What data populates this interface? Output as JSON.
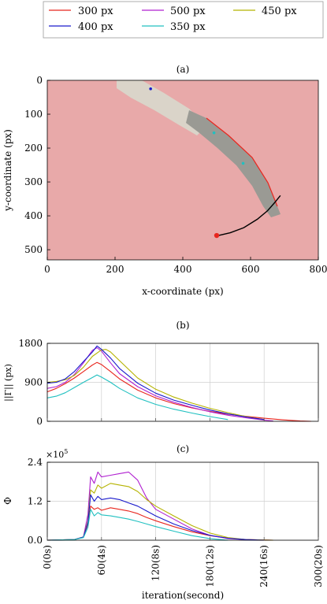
{
  "legend": {
    "entries": [
      {
        "label": "300 px",
        "color": "#e8261e"
      },
      {
        "label": "500 px",
        "color": "#b020d0"
      },
      {
        "label": "450 px",
        "color": "#b5b300"
      },
      {
        "label": "400 px",
        "color": "#1a1acc"
      },
      {
        "label": "350 px",
        "color": "#20c0c0"
      }
    ]
  },
  "chart_data": [
    {
      "panel_label": "(a)",
      "type": "scatter",
      "xlabel": "x-coordinate (px)",
      "ylabel": "y-coordinate (px)",
      "xlim": [
        0,
        800
      ],
      "ylim": [
        530,
        0
      ],
      "xticks": [
        "0",
        "200",
        "400",
        "600",
        "800"
      ],
      "yticks": [
        "0",
        "100",
        "200",
        "300",
        "400",
        "500"
      ],
      "image_description_colors": {
        "background": "#e8a9a9",
        "tube": "#9a9a94"
      },
      "target_point": {
        "x": 500,
        "y": 458,
        "color": "#e8261e"
      },
      "trajectory": {
        "x": [
          505,
          540,
          580,
          620,
          650,
          672,
          688
        ],
        "y": [
          458,
          450,
          435,
          410,
          385,
          360,
          340
        ]
      },
      "markers": [
        {
          "x": 305,
          "y": 25,
          "color": "#1a1acc"
        },
        {
          "x": 492,
          "y": 155,
          "color": "#20c0c0"
        },
        {
          "x": 578,
          "y": 245,
          "color": "#20c0c0"
        }
      ]
    },
    {
      "panel_label": "(b)",
      "type": "line",
      "ylabel": "||Γ|| (px)",
      "xlim": [
        0,
        300
      ],
      "ylim": [
        0,
        1800
      ],
      "yticks": [
        "0",
        "900",
        "1800"
      ],
      "series": [
        {
          "name": "300 px",
          "color": "#e8261e",
          "x": [
            0,
            10,
            20,
            30,
            40,
            50,
            55,
            60,
            70,
            80,
            100,
            120,
            140,
            160,
            180,
            200,
            220,
            240,
            260,
            280,
            292
          ],
          "y": [
            680,
            760,
            870,
            1000,
            1150,
            1300,
            1360,
            1310,
            1150,
            980,
            720,
            540,
            410,
            310,
            230,
            165,
            115,
            70,
            35,
            8,
            0
          ]
        },
        {
          "name": "500 px",
          "color": "#b020d0",
          "x": [
            0,
            10,
            20,
            30,
            40,
            50,
            55,
            60,
            70,
            80,
            100,
            120,
            140,
            160,
            180,
            200,
            220,
            240,
            250
          ],
          "y": [
            760,
            800,
            900,
            1080,
            1350,
            1640,
            1700,
            1620,
            1350,
            1100,
            800,
            590,
            440,
            320,
            220,
            140,
            80,
            30,
            10
          ]
        },
        {
          "name": "450 px",
          "color": "#b5b300",
          "x": [
            0,
            10,
            20,
            30,
            40,
            50,
            60,
            65,
            70,
            80,
            100,
            120,
            140,
            160,
            180,
            200,
            220,
            240
          ],
          "y": [
            900,
            920,
            960,
            1060,
            1250,
            1500,
            1650,
            1660,
            1600,
            1400,
            1000,
            740,
            560,
            420,
            300,
            200,
            110,
            40
          ]
        },
        {
          "name": "400 px",
          "color": "#1a1acc",
          "x": [
            0,
            10,
            20,
            30,
            40,
            50,
            55,
            60,
            70,
            80,
            100,
            120,
            140,
            160,
            180,
            200,
            220,
            240
          ],
          "y": [
            880,
            900,
            980,
            1150,
            1380,
            1600,
            1740,
            1660,
            1460,
            1220,
            880,
            650,
            490,
            370,
            260,
            170,
            100,
            40
          ]
        },
        {
          "name": "350 px",
          "color": "#20c0c0",
          "x": [
            0,
            10,
            20,
            30,
            40,
            50,
            55,
            60,
            70,
            80,
            100,
            120,
            140,
            160,
            180,
            200
          ],
          "y": [
            540,
            580,
            660,
            780,
            900,
            1010,
            1070,
            1020,
            900,
            760,
            540,
            390,
            280,
            190,
            110,
            40
          ]
        }
      ]
    },
    {
      "panel_label": "(c)",
      "type": "line",
      "ylabel": "Φ",
      "xlabel": "iteration(second)",
      "multiplier": "×10",
      "multiplier_exp": "5",
      "xlim": [
        0,
        300
      ],
      "ylim": [
        0,
        2.4
      ],
      "yticks": [
        "0.0",
        "1.2",
        "2.4"
      ],
      "xticks": [
        "0(0s)",
        "60(4s)",
        "120(8s)",
        "180(12s)",
        "240(16s)",
        "300(20s)"
      ],
      "series": [
        {
          "name": "300 px",
          "color": "#e8261e",
          "x": [
            0,
            30,
            40,
            45,
            48,
            52,
            56,
            60,
            70,
            80,
            90,
            100,
            110,
            120,
            140,
            160,
            180,
            200,
            220,
            250
          ],
          "y": [
            0,
            0.02,
            0.1,
            0.5,
            1.05,
            0.95,
            1.0,
            0.92,
            1.0,
            0.95,
            0.9,
            0.82,
            0.7,
            0.6,
            0.42,
            0.26,
            0.14,
            0.06,
            0.02,
            0
          ]
        },
        {
          "name": "500 px",
          "color": "#b020d0",
          "x": [
            0,
            30,
            40,
            45,
            48,
            52,
            56,
            60,
            70,
            80,
            90,
            100,
            110,
            120,
            140,
            160,
            180,
            200,
            220,
            250
          ],
          "y": [
            0,
            0.02,
            0.1,
            0.8,
            1.95,
            1.75,
            2.1,
            1.95,
            2.0,
            2.05,
            2.1,
            1.85,
            1.3,
            0.95,
            0.65,
            0.35,
            0.15,
            0.05,
            0.02,
            0
          ]
        },
        {
          "name": "450 px",
          "color": "#b5b300",
          "x": [
            0,
            30,
            40,
            45,
            48,
            52,
            56,
            60,
            70,
            80,
            90,
            100,
            110,
            120,
            140,
            160,
            180,
            200,
            220,
            250
          ],
          "y": [
            0,
            0.02,
            0.1,
            0.6,
            1.55,
            1.45,
            1.7,
            1.6,
            1.75,
            1.7,
            1.65,
            1.5,
            1.25,
            1.05,
            0.75,
            0.45,
            0.22,
            0.08,
            0.02,
            0
          ]
        },
        {
          "name": "400 px",
          "color": "#1a1acc",
          "x": [
            0,
            30,
            40,
            45,
            48,
            52,
            56,
            60,
            70,
            80,
            90,
            100,
            110,
            120,
            140,
            160,
            180,
            200,
            220,
            240
          ],
          "y": [
            0,
            0.02,
            0.1,
            0.55,
            1.4,
            1.2,
            1.35,
            1.25,
            1.3,
            1.25,
            1.15,
            1.05,
            0.9,
            0.75,
            0.5,
            0.3,
            0.15,
            0.06,
            0.02,
            0
          ]
        },
        {
          "name": "350 px",
          "color": "#20c0c0",
          "x": [
            0,
            30,
            40,
            45,
            48,
            52,
            56,
            60,
            70,
            80,
            90,
            100,
            110,
            120,
            140,
            160,
            180,
            200
          ],
          "y": [
            0,
            0.02,
            0.08,
            0.4,
            0.95,
            0.75,
            0.85,
            0.78,
            0.75,
            0.7,
            0.65,
            0.58,
            0.5,
            0.42,
            0.28,
            0.14,
            0.05,
            0
          ]
        }
      ]
    }
  ]
}
